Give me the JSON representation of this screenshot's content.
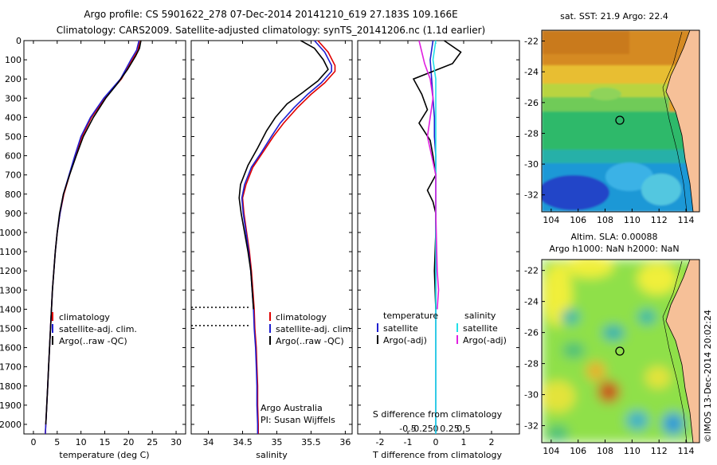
{
  "header": {
    "title_line1": "Argo profile: CS 5901622_278 07-Dec-2014 20141210_619 27.183S 109.166E",
    "title_line2": "Climatology: CARS2009. Satellite-adjusted climatology: synTS_20141206.nc (1.1d earlier)"
  },
  "colors": {
    "climatology": "#e00000",
    "satellite": "#1f1fd0",
    "argo": "#000000",
    "satellite_salinity": "#22e0e8",
    "argo_salinity": "#e020e0"
  },
  "chart_data": [
    {
      "id": "temperature",
      "type": "line",
      "xlabel": "temperature (deg C)",
      "ylabel": "",
      "xlim": [
        -2,
        32
      ],
      "ylim": [
        2050,
        0
      ],
      "xticks": [
        0,
        5,
        10,
        15,
        20,
        25,
        30
      ],
      "yticks": [
        0,
        100,
        200,
        300,
        400,
        500,
        600,
        700,
        800,
        900,
        1000,
        1100,
        1200,
        1300,
        1400,
        1500,
        1600,
        1700,
        1800,
        1900,
        2000
      ],
      "legend": [
        "climatology",
        "satellite-adj. clim.",
        "Argo(..raw -QC)"
      ],
      "series": [
        {
          "name": "climatology",
          "color": "#e00000",
          "points": [
            [
              22.3,
              0
            ],
            [
              22,
              50
            ],
            [
              20.8,
              100
            ],
            [
              18.5,
              200
            ],
            [
              15,
              300
            ],
            [
              12.2,
              400
            ],
            [
              10.2,
              500
            ],
            [
              8.8,
              600
            ],
            [
              7.6,
              700
            ],
            [
              6.4,
              800
            ],
            [
              5.6,
              900
            ],
            [
              5,
              1000
            ],
            [
              4.6,
              1100
            ],
            [
              4.3,
              1200
            ],
            [
              4,
              1300
            ],
            [
              3.8,
              1400
            ],
            [
              3.6,
              1500
            ],
            [
              3.4,
              1600
            ],
            [
              3.2,
              1700
            ],
            [
              3,
              1800
            ],
            [
              2.8,
              1900
            ],
            [
              2.6,
              2000
            ],
            [
              2.5,
              2050
            ]
          ]
        },
        {
          "name": "satellite-adj. clim.",
          "color": "#1f1fd0",
          "points": [
            [
              22.2,
              0
            ],
            [
              21.7,
              50
            ],
            [
              20.5,
              100
            ],
            [
              18.3,
              200
            ],
            [
              14.8,
              300
            ],
            [
              12,
              400
            ],
            [
              10,
              500
            ],
            [
              8.7,
              600
            ],
            [
              7.5,
              700
            ],
            [
              6.3,
              800
            ],
            [
              5.6,
              900
            ],
            [
              5,
              1000
            ],
            [
              4.6,
              1100
            ],
            [
              4.3,
              1200
            ],
            [
              4,
              1300
            ],
            [
              3.8,
              1400
            ],
            [
              3.6,
              1500
            ],
            [
              3.4,
              1600
            ],
            [
              3.2,
              1700
            ],
            [
              3,
              1800
            ],
            [
              2.8,
              1900
            ],
            [
              2.6,
              2000
            ],
            [
              2.5,
              2050
            ]
          ]
        },
        {
          "name": "Argo(..raw -QC)",
          "color": "#000000",
          "points": [
            [
              22.6,
              0
            ],
            [
              22.3,
              40
            ],
            [
              21.5,
              80
            ],
            [
              19.8,
              150
            ],
            [
              17.8,
              220
            ],
            [
              15.2,
              300
            ],
            [
              12.6,
              400
            ],
            [
              10.5,
              500
            ],
            [
              9,
              600
            ],
            [
              7.6,
              700
            ],
            [
              6.3,
              800
            ],
            [
              5.5,
              900
            ],
            [
              5,
              1000
            ],
            [
              4.6,
              1100
            ],
            [
              4.3,
              1200
            ],
            [
              4,
              1300
            ],
            [
              3.8,
              1400
            ],
            [
              3.6,
              1500
            ],
            [
              3.4,
              1600
            ],
            [
              3.2,
              1700
            ],
            [
              3,
              1800
            ],
            [
              2.8,
              1900
            ],
            [
              2.6,
              2000
            ]
          ]
        }
      ]
    },
    {
      "id": "salinity",
      "type": "line",
      "xlabel": "salinity",
      "ylabel": "",
      "xlim": [
        33.75,
        36.1
      ],
      "ylim": [
        2050,
        0
      ],
      "xticks": [
        34,
        34.5,
        35,
        35.5,
        36
      ],
      "legend": [
        "climatology",
        "satellite-adj. clim.",
        "Argo(..raw -QC)"
      ],
      "annotation_lines": [
        "Argo Australia",
        "PI: Susan Wijffels"
      ],
      "qc_marker_depths": [
        1390,
        1485
      ],
      "series": [
        {
          "name": "climatology",
          "color": "#e00000",
          "points": [
            [
              35.6,
              0
            ],
            [
              35.75,
              60
            ],
            [
              35.85,
              130
            ],
            [
              35.85,
              160
            ],
            [
              35.7,
              220
            ],
            [
              35.5,
              280
            ],
            [
              35.3,
              350
            ],
            [
              35.1,
              430
            ],
            [
              34.95,
              500
            ],
            [
              34.8,
              580
            ],
            [
              34.65,
              660
            ],
            [
              34.55,
              750
            ],
            [
              34.5,
              820
            ],
            [
              34.52,
              900
            ],
            [
              34.56,
              1000
            ],
            [
              34.6,
              1100
            ],
            [
              34.63,
              1200
            ],
            [
              34.65,
              1300
            ],
            [
              34.67,
              1400
            ],
            [
              34.68,
              1500
            ],
            [
              34.7,
              1600
            ],
            [
              34.71,
              1700
            ],
            [
              34.72,
              1800
            ],
            [
              34.72,
              1900
            ],
            [
              34.73,
              2000
            ],
            [
              34.73,
              2050
            ]
          ]
        },
        {
          "name": "satellite-adj. clim.",
          "color": "#1f1fd0",
          "points": [
            [
              35.55,
              0
            ],
            [
              35.7,
              60
            ],
            [
              35.8,
              130
            ],
            [
              35.8,
              160
            ],
            [
              35.65,
              220
            ],
            [
              35.45,
              280
            ],
            [
              35.25,
              350
            ],
            [
              35.05,
              430
            ],
            [
              34.92,
              500
            ],
            [
              34.78,
              580
            ],
            [
              34.63,
              660
            ],
            [
              34.53,
              750
            ],
            [
              34.49,
              820
            ],
            [
              34.51,
              900
            ],
            [
              34.55,
              1000
            ],
            [
              34.59,
              1100
            ],
            [
              34.62,
              1200
            ],
            [
              34.64,
              1300
            ],
            [
              34.66,
              1400
            ],
            [
              34.67,
              1500
            ],
            [
              34.69,
              1600
            ],
            [
              34.7,
              1700
            ],
            [
              34.71,
              1800
            ],
            [
              34.71,
              1900
            ],
            [
              34.72,
              2000
            ],
            [
              34.72,
              2050
            ]
          ]
        },
        {
          "name": "Argo(..raw -QC)",
          "color": "#000000",
          "points": [
            [
              35.35,
              0
            ],
            [
              35.55,
              40
            ],
            [
              35.68,
              100
            ],
            [
              35.75,
              150
            ],
            [
              35.6,
              210
            ],
            [
              35.38,
              270
            ],
            [
              35.15,
              330
            ],
            [
              34.98,
              400
            ],
            [
              34.85,
              470
            ],
            [
              34.72,
              560
            ],
            [
              34.58,
              650
            ],
            [
              34.47,
              750
            ],
            [
              34.45,
              820
            ],
            [
              34.48,
              900
            ],
            [
              34.53,
              1000
            ],
            [
              34.58,
              1100
            ],
            [
              34.62,
              1200
            ],
            [
              34.64,
              1300
            ],
            [
              34.66,
              1400
            ]
          ]
        }
      ]
    },
    {
      "id": "difference",
      "type": "line",
      "xlabel": "T difference from climatology",
      "top_label": "S difference from climatology",
      "xlim": [
        -2.8,
        3
      ],
      "ylim": [
        2050,
        0
      ],
      "xticks": [
        -2,
        -1,
        0,
        1,
        2
      ],
      "s_ticks": [
        "-0.5",
        "-0.25",
        "0",
        "0.25",
        "0.5"
      ],
      "legend": {
        "temperature_header": "temperature",
        "salinity_header": "salinity",
        "satellite": "satellite",
        "argo": "Argo(-adj)"
      },
      "series": [
        {
          "name": "temperature satellite",
          "color": "#1f1fd0",
          "points": [
            [
              -0.1,
              0
            ],
            [
              -0.2,
              100
            ],
            [
              -0.15,
              200
            ],
            [
              -0.1,
              300
            ],
            [
              -0.05,
              400
            ],
            [
              -0.05,
              500
            ],
            [
              0,
              600
            ],
            [
              0,
              800
            ],
            [
              0,
              1000
            ],
            [
              0,
              1500
            ],
            [
              0,
              2050
            ]
          ]
        },
        {
          "name": "temperature Argo",
          "color": "#000000",
          "points": [
            [
              0.3,
              0
            ],
            [
              0.9,
              60
            ],
            [
              0.6,
              120
            ],
            [
              -0.8,
              200
            ],
            [
              -0.5,
              280
            ],
            [
              -0.3,
              360
            ],
            [
              -0.6,
              430
            ],
            [
              -0.2,
              520
            ],
            [
              -0.1,
              600
            ],
            [
              0,
              700
            ],
            [
              -0.3,
              780
            ],
            [
              -0.1,
              840
            ],
            [
              0,
              900
            ],
            [
              0,
              1000
            ],
            [
              -0.05,
              1200
            ],
            [
              0,
              1400
            ]
          ]
        },
        {
          "name": "salinity satellite",
          "color": "#22e0e8",
          "points": [
            [
              0,
              0
            ],
            [
              -0.1,
              100
            ],
            [
              0,
              200
            ],
            [
              0,
              300
            ],
            [
              0,
              500
            ],
            [
              0,
              800
            ],
            [
              0,
              1200
            ],
            [
              0,
              1600
            ],
            [
              0,
              2050
            ]
          ]
        },
        {
          "name": "salinity Argo",
          "color": "#e020e0",
          "points": [
            [
              -0.6,
              0
            ],
            [
              -0.5,
              60
            ],
            [
              -0.4,
              120
            ],
            [
              -0.2,
              200
            ],
            [
              -0.1,
              300
            ],
            [
              -0.2,
              400
            ],
            [
              -0.3,
              500
            ],
            [
              -0.15,
              600
            ],
            [
              0,
              700
            ],
            [
              0,
              900
            ],
            [
              0.05,
              1200
            ],
            [
              0.1,
              1300
            ],
            [
              0.05,
              1400
            ]
          ]
        }
      ]
    }
  ],
  "maps": {
    "sst": {
      "title": "sat. SST: 21.9 Argo: 22.4",
      "xticks": [
        "104",
        "106",
        "108",
        "110",
        "112",
        "114"
      ],
      "yticks": [
        "-22",
        "-24",
        "-26",
        "-28",
        "-30",
        "-32"
      ]
    },
    "sla": {
      "title_line1": "Altim. SLA: 0.00088",
      "title_line2": "Argo h1000: NaN h2000: NaN",
      "xticks": [
        "104",
        "106",
        "108",
        "110",
        "112",
        "114"
      ],
      "yticks": [
        "-22",
        "-24",
        "-26",
        "-28",
        "-30",
        "-32"
      ],
      "side_text": "©IMOS 13-Dec-2014 20:02:24"
    }
  }
}
